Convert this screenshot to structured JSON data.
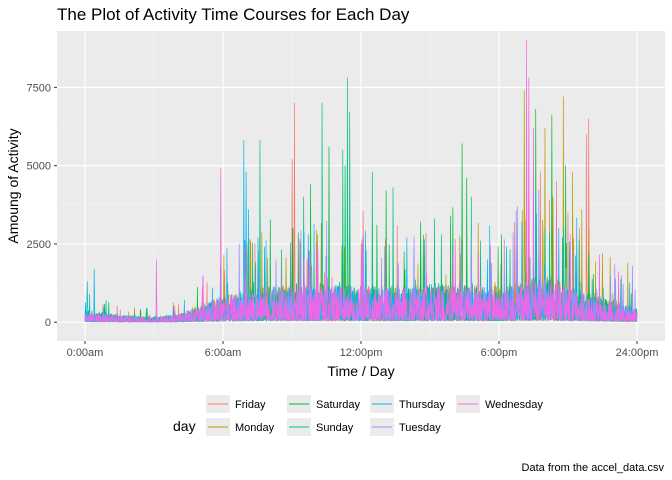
{
  "chart_data": {
    "type": "line",
    "title": "The Plot of Activity Time Courses for Each Day",
    "xlabel": "Time / Day",
    "ylabel": "Amoung of Activity",
    "caption": "Data from the accel_data.csv",
    "x_range_hours": [
      0,
      24
    ],
    "ylim": [
      -600,
      9300
    ],
    "x_ticks": [
      {
        "hour": 0,
        "label": "0:00am"
      },
      {
        "hour": 6,
        "label": "6:00am"
      },
      {
        "hour": 12,
        "label": "12:00pm"
      },
      {
        "hour": 18,
        "label": "6:00pm"
      },
      {
        "hour": 24,
        "label": "24:00pm"
      }
    ],
    "y_ticks": [
      0,
      2500,
      5000,
      7500
    ],
    "grid": true,
    "legend": {
      "title": "day",
      "position": "bottom"
    },
    "series": [
      {
        "name": "Friday",
        "color": "#F8766D",
        "baseline": [
          [
            0,
            250
          ],
          [
            1,
            180
          ],
          [
            2,
            140
          ],
          [
            3,
            120
          ],
          [
            4,
            170
          ],
          [
            5,
            420
          ],
          [
            6,
            650
          ],
          [
            7,
            800
          ],
          [
            8,
            850
          ],
          [
            9,
            900
          ],
          [
            10,
            850
          ],
          [
            11,
            850
          ],
          [
            12,
            900
          ],
          [
            13,
            850
          ],
          [
            14,
            850
          ],
          [
            15,
            900
          ],
          [
            16,
            950
          ],
          [
            17,
            900
          ],
          [
            18,
            850
          ],
          [
            19,
            1000
          ],
          [
            20,
            1250
          ],
          [
            21,
            950
          ],
          [
            22,
            700
          ],
          [
            23,
            500
          ],
          [
            24,
            300
          ]
        ],
        "peaks": [
          [
            9.1,
            7000
          ],
          [
            9.0,
            5200
          ],
          [
            19.3,
            4000
          ],
          [
            19.8,
            4800
          ],
          [
            20.5,
            4500
          ],
          [
            21.0,
            3500
          ],
          [
            21.5,
            3000
          ],
          [
            21.9,
            6500
          ],
          [
            21.8,
            6000
          ],
          [
            20.2,
            3900
          ]
        ]
      },
      {
        "name": "Monday",
        "color": "#B79F00",
        "baseline": [
          [
            0,
            280
          ],
          [
            1,
            200
          ],
          [
            2,
            150
          ],
          [
            3,
            130
          ],
          [
            4,
            190
          ],
          [
            5,
            450
          ],
          [
            6,
            700
          ],
          [
            7,
            850
          ],
          [
            8,
            900
          ],
          [
            9,
            900
          ],
          [
            10,
            880
          ],
          [
            11,
            870
          ],
          [
            12,
            900
          ],
          [
            13,
            880
          ],
          [
            14,
            860
          ],
          [
            15,
            880
          ],
          [
            16,
            920
          ],
          [
            17,
            900
          ],
          [
            18,
            880
          ],
          [
            19,
            1000
          ],
          [
            20,
            1200
          ],
          [
            21,
            950
          ],
          [
            22,
            750
          ],
          [
            23,
            550
          ],
          [
            24,
            350
          ]
        ],
        "peaks": [
          [
            7.2,
            2600
          ],
          [
            19.1,
            7400
          ],
          [
            20.0,
            6200
          ],
          [
            20.8,
            7200
          ],
          [
            21.2,
            4800
          ],
          [
            21.6,
            3600
          ],
          [
            22.5,
            2200
          ],
          [
            23.6,
            1900
          ],
          [
            10.1,
            2800
          ]
        ]
      },
      {
        "name": "Saturday",
        "color": "#00BA38",
        "baseline": [
          [
            0,
            300
          ],
          [
            1,
            220
          ],
          [
            2,
            160
          ],
          [
            3,
            140
          ],
          [
            4,
            200
          ],
          [
            5,
            380
          ],
          [
            6,
            620
          ],
          [
            7,
            800
          ],
          [
            8,
            880
          ],
          [
            9,
            950
          ],
          [
            10,
            1000
          ],
          [
            11,
            1000
          ],
          [
            12,
            950
          ],
          [
            13,
            900
          ],
          [
            14,
            900
          ],
          [
            15,
            950
          ],
          [
            16,
            1000
          ],
          [
            17,
            950
          ],
          [
            18,
            900
          ],
          [
            19,
            1000
          ],
          [
            20,
            1200
          ],
          [
            21,
            900
          ],
          [
            22,
            700
          ],
          [
            23,
            550
          ],
          [
            24,
            350
          ]
        ],
        "peaks": [
          [
            9.8,
            4400
          ],
          [
            10.6,
            5600
          ],
          [
            11.3,
            5000
          ],
          [
            13.1,
            4200
          ],
          [
            14.6,
            3200
          ],
          [
            16.4,
            5700
          ],
          [
            16.6,
            4600
          ],
          [
            19.6,
            6800
          ],
          [
            20.3,
            6600
          ],
          [
            20.9,
            5000
          ],
          [
            12.7,
            3100
          ]
        ]
      },
      {
        "name": "Sunday",
        "color": "#00C08B",
        "baseline": [
          [
            0,
            320
          ],
          [
            1,
            230
          ],
          [
            2,
            170
          ],
          [
            3,
            150
          ],
          [
            4,
            180
          ],
          [
            5,
            350
          ],
          [
            6,
            580
          ],
          [
            7,
            780
          ],
          [
            8,
            860
          ],
          [
            9,
            920
          ],
          [
            10,
            950
          ],
          [
            11,
            980
          ],
          [
            12,
            940
          ],
          [
            13,
            900
          ],
          [
            14,
            880
          ],
          [
            15,
            900
          ],
          [
            16,
            960
          ],
          [
            17,
            920
          ],
          [
            18,
            880
          ],
          [
            19,
            980
          ],
          [
            20,
            1150
          ],
          [
            21,
            900
          ],
          [
            22,
            700
          ],
          [
            23,
            520
          ],
          [
            24,
            330
          ]
        ],
        "peaks": [
          [
            7.6,
            5800
          ],
          [
            9.5,
            4000
          ],
          [
            10.3,
            7000
          ],
          [
            11.2,
            5500
          ],
          [
            11.4,
            7800
          ],
          [
            11.5,
            6700
          ],
          [
            12.5,
            4800
          ],
          [
            13.4,
            4300
          ],
          [
            15.2,
            3300
          ],
          [
            15.5,
            2800
          ],
          [
            16.8,
            4000
          ],
          [
            17.2,
            2600
          ],
          [
            20.0,
            3000
          ]
        ]
      },
      {
        "name": "Thursday",
        "color": "#00B4F0",
        "baseline": [
          [
            0,
            300
          ],
          [
            1,
            210
          ],
          [
            2,
            160
          ],
          [
            3,
            140
          ],
          [
            4,
            200
          ],
          [
            5,
            420
          ],
          [
            6,
            650
          ],
          [
            7,
            820
          ],
          [
            8,
            880
          ],
          [
            9,
            900
          ],
          [
            10,
            900
          ],
          [
            11,
            920
          ],
          [
            12,
            900
          ],
          [
            13,
            880
          ],
          [
            14,
            900
          ],
          [
            15,
            940
          ],
          [
            16,
            950
          ],
          [
            17,
            900
          ],
          [
            18,
            880
          ],
          [
            19,
            960
          ],
          [
            20,
            1100
          ],
          [
            21,
            900
          ],
          [
            22,
            700
          ],
          [
            23,
            520
          ],
          [
            24,
            330
          ]
        ],
        "peaks": [
          [
            0.1,
            1300
          ],
          [
            0.4,
            1700
          ],
          [
            6.9,
            5800
          ],
          [
            7.0,
            4800
          ],
          [
            7.1,
            3600
          ],
          [
            7.8,
            2400
          ],
          [
            9.7,
            2800
          ],
          [
            12.2,
            2900
          ],
          [
            14.0,
            2700
          ],
          [
            17.5,
            2000
          ],
          [
            19.0,
            3200
          ],
          [
            20.6,
            3000
          ]
        ]
      },
      {
        "name": "Tuesday",
        "color": "#9590FF",
        "baseline": [
          [
            0,
            270
          ],
          [
            1,
            190
          ],
          [
            2,
            150
          ],
          [
            3,
            130
          ],
          [
            4,
            180
          ],
          [
            5,
            400
          ],
          [
            6,
            620
          ],
          [
            7,
            800
          ],
          [
            8,
            860
          ],
          [
            9,
            880
          ],
          [
            10,
            880
          ],
          [
            11,
            880
          ],
          [
            12,
            880
          ],
          [
            13,
            870
          ],
          [
            14,
            860
          ],
          [
            15,
            880
          ],
          [
            16,
            920
          ],
          [
            17,
            880
          ],
          [
            18,
            850
          ],
          [
            19,
            950
          ],
          [
            20,
            1150
          ],
          [
            21,
            900
          ],
          [
            22,
            700
          ],
          [
            23,
            500
          ],
          [
            24,
            320
          ]
        ],
        "peaks": [
          [
            18.8,
            3700
          ],
          [
            6.7,
            2500
          ],
          [
            21.2,
            2300
          ],
          [
            23.8,
            1800
          ],
          [
            14.3,
            2100
          ],
          [
            8.3,
            2000
          ]
        ]
      },
      {
        "name": "Wednesday",
        "color": "#F564E3",
        "baseline": [
          [
            0,
            260
          ],
          [
            1,
            190
          ],
          [
            2,
            150
          ],
          [
            3,
            130
          ],
          [
            4,
            180
          ],
          [
            5,
            420
          ],
          [
            6,
            650
          ],
          [
            7,
            820
          ],
          [
            8,
            880
          ],
          [
            9,
            900
          ],
          [
            10,
            900
          ],
          [
            11,
            900
          ],
          [
            12,
            900
          ],
          [
            13,
            880
          ],
          [
            14,
            880
          ],
          [
            15,
            900
          ],
          [
            16,
            930
          ],
          [
            17,
            900
          ],
          [
            18,
            880
          ],
          [
            19,
            980
          ],
          [
            20,
            1150
          ],
          [
            21,
            920
          ],
          [
            22,
            720
          ],
          [
            23,
            520
          ],
          [
            24,
            330
          ]
        ],
        "peaks": [
          [
            3.1,
            2000
          ],
          [
            5.9,
            4900
          ],
          [
            19.2,
            9000
          ],
          [
            19.3,
            7800
          ],
          [
            19.5,
            6200
          ],
          [
            20.5,
            3500
          ],
          [
            21.1,
            2800
          ],
          [
            12.0,
            2500
          ],
          [
            16.0,
            2300
          ]
        ]
      }
    ]
  }
}
